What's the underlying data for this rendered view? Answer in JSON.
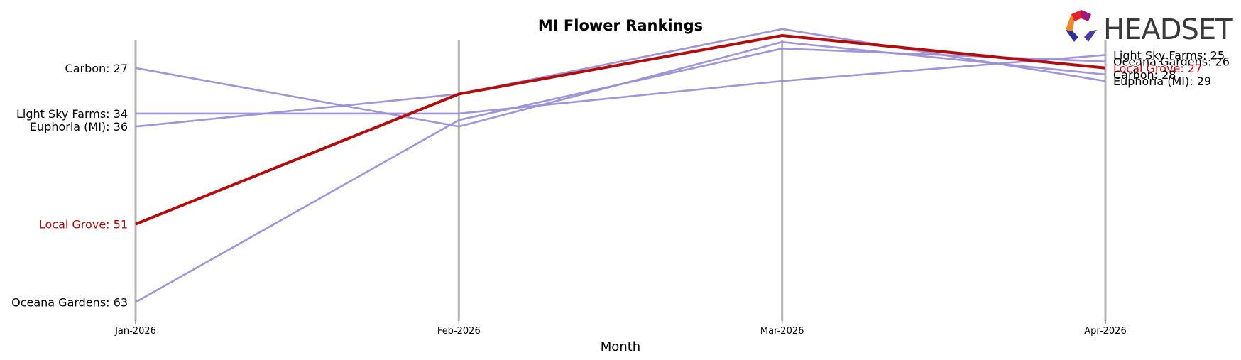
{
  "chart_data": {
    "type": "line",
    "title": "MI Flower Rankings",
    "xlabel": "Month",
    "ylabel": "",
    "x": [
      "Jan-2026",
      "Feb-2026",
      "Mar-2026",
      "Apr-2026"
    ],
    "y_inverted": true,
    "ylim": [
      66,
      22
    ],
    "grid": "vertical",
    "highlight_series": "Local Grove",
    "series": [
      {
        "name": "Carbon",
        "values": [
          27,
          36,
          23,
          28
        ],
        "color": "#9b8fd8"
      },
      {
        "name": "Light Sky Farms",
        "values": [
          34,
          34,
          29,
          25
        ],
        "color": "#9b8fd8"
      },
      {
        "name": "Euphoria (MI)",
        "values": [
          36,
          31,
          21,
          29
        ],
        "color": "#9b8fd8"
      },
      {
        "name": "Local Grove",
        "values": [
          51,
          31,
          22,
          27
        ],
        "color": "#b30c0c"
      },
      {
        "name": "Oceana Gardens",
        "values": [
          63,
          35,
          24,
          26
        ],
        "color": "#9b8fd8"
      }
    ]
  },
  "left_labels": [
    {
      "text": "Carbon: 27",
      "series": "Carbon"
    },
    {
      "text": "Light Sky Farms: 34",
      "series": "Light Sky Farms"
    },
    {
      "text": "Euphoria (MI): 36",
      "series": "Euphoria (MI)"
    },
    {
      "text": "Local Grove: 51",
      "series": "Local Grove"
    },
    {
      "text": "Oceana Gardens: 63",
      "series": "Oceana Gardens"
    }
  ],
  "right_labels": [
    {
      "text": "Light Sky Farms: 25",
      "series": "Light Sky Farms"
    },
    {
      "text": "Oceana Gardens: 26",
      "series": "Oceana Gardens"
    },
    {
      "text": "Local Grove: 27",
      "series": "Local Grove"
    },
    {
      "text": "Carbon: 28",
      "series": "Carbon"
    },
    {
      "text": "Euphoria (MI): 29",
      "series": "Euphoria (MI)"
    }
  ],
  "logo": {
    "text": "HEADSET",
    "colors": [
      "#e5232e",
      "#a4177a",
      "#f08a24",
      "#2d3192",
      "#4a3ca0"
    ]
  }
}
